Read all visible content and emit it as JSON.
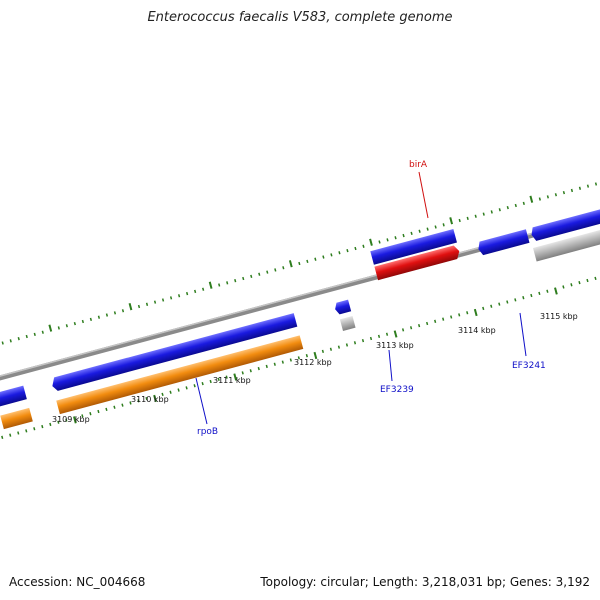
{
  "title": "Enterococcus faecalis V583, complete genome",
  "footer": {
    "accession": "Accession: NC_004668",
    "summary": "Topology: circular; Length: 3,218,031 bp; Genes: 3,192"
  },
  "colors": {
    "backbone": "#8a8a8a",
    "tick": "#2e7d1e",
    "cds_blue": "#1a1ae0",
    "cds_red": "#e01010",
    "cds_orange": "#f28c0f",
    "cds_gray": "#b8b8b8",
    "label_blue": "#1010c8",
    "label_red": "#d01010"
  },
  "kbp_labels": [
    "3109 kbp",
    "3110 kbp",
    "3111 kbp",
    "3112 kbp",
    "3113 kbp",
    "3114 kbp",
    "3115 kbp"
  ],
  "gene_labels": {
    "birA": "birA",
    "rpoB": "rpoB",
    "EF3239": "EF3239",
    "EF3241": "EF3241"
  }
}
